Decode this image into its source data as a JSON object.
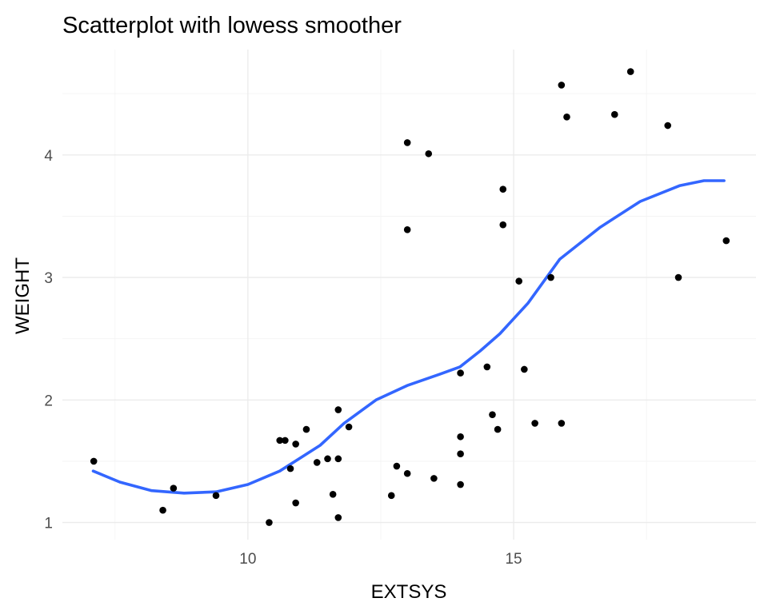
{
  "chart_data": {
    "type": "scatter",
    "title": "Scatterplot with lowess smoother",
    "xlabel": "EXTSYS",
    "ylabel": "WEIGHT",
    "xlim": [
      6.51,
      19.56
    ],
    "ylim": [
      0.86,
      4.86
    ],
    "xticks": [
      10,
      15
    ],
    "xtick_labels": [
      "10",
      "15"
    ],
    "xminor": [
      7.5,
      12.5,
      17.5
    ],
    "yticks": [
      1,
      2,
      3,
      4
    ],
    "ytick_labels": [
      "1",
      "2",
      "3",
      "4"
    ],
    "yminor": [
      1.5,
      2.5,
      3.5,
      4.5
    ],
    "grid": true,
    "point_color": "#000000",
    "smoother_color": "#3366FF",
    "points": [
      [
        7.1,
        1.5
      ],
      [
        8.4,
        1.1
      ],
      [
        8.6,
        1.28
      ],
      [
        9.4,
        1.22
      ],
      [
        10.4,
        1.0
      ],
      [
        10.6,
        1.67
      ],
      [
        10.7,
        1.67
      ],
      [
        10.8,
        1.44
      ],
      [
        10.9,
        1.64
      ],
      [
        10.9,
        1.16
      ],
      [
        11.1,
        1.76
      ],
      [
        11.3,
        1.49
      ],
      [
        11.5,
        1.52
      ],
      [
        11.6,
        1.23
      ],
      [
        11.7,
        1.92
      ],
      [
        11.7,
        1.52
      ],
      [
        11.7,
        1.04
      ],
      [
        11.9,
        1.78
      ],
      [
        12.7,
        1.22
      ],
      [
        12.8,
        1.46
      ],
      [
        13.0,
        4.1
      ],
      [
        13.0,
        3.39
      ],
      [
        13.0,
        1.4
      ],
      [
        13.4,
        4.01
      ],
      [
        13.5,
        1.36
      ],
      [
        14.0,
        2.22
      ],
      [
        14.0,
        1.7
      ],
      [
        14.0,
        1.56
      ],
      [
        14.0,
        1.31
      ],
      [
        14.5,
        2.27
      ],
      [
        14.6,
        1.88
      ],
      [
        14.7,
        1.76
      ],
      [
        14.8,
        3.72
      ],
      [
        14.8,
        3.43
      ],
      [
        15.1,
        2.97
      ],
      [
        15.2,
        2.25
      ],
      [
        15.4,
        1.81
      ],
      [
        15.7,
        3.0
      ],
      [
        15.9,
        4.57
      ],
      [
        15.9,
        1.81
      ],
      [
        16.0,
        4.31
      ],
      [
        16.9,
        4.33
      ],
      [
        17.2,
        4.68
      ],
      [
        17.9,
        4.24
      ],
      [
        18.1,
        3.0
      ],
      [
        19.0,
        3.3
      ]
    ],
    "lowess": [
      [
        7.09,
        1.42
      ],
      [
        7.59,
        1.33
      ],
      [
        8.19,
        1.26
      ],
      [
        8.8,
        1.24
      ],
      [
        9.4,
        1.25
      ],
      [
        10.0,
        1.31
      ],
      [
        10.6,
        1.42
      ],
      [
        11.36,
        1.63
      ],
      [
        11.81,
        1.81
      ],
      [
        12.41,
        2.0
      ],
      [
        13.01,
        2.12
      ],
      [
        13.61,
        2.21
      ],
      [
        13.99,
        2.27
      ],
      [
        14.37,
        2.4
      ],
      [
        14.74,
        2.54
      ],
      [
        15.27,
        2.79
      ],
      [
        15.87,
        3.15
      ],
      [
        16.63,
        3.41
      ],
      [
        17.38,
        3.62
      ],
      [
        18.13,
        3.75
      ],
      [
        18.58,
        3.79
      ],
      [
        18.96,
        3.79
      ]
    ]
  }
}
